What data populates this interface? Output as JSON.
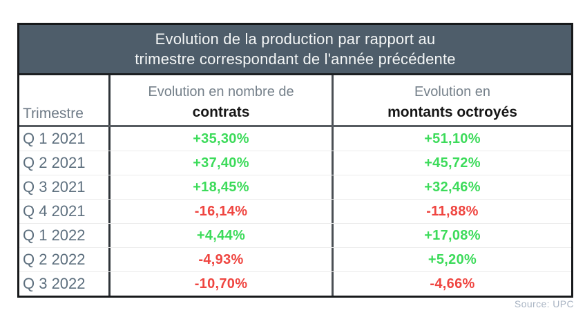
{
  "table": {
    "title_line1": "Evolution de la production par rapport au",
    "title_line2": "trimestre correspondant de l'année précédente",
    "header": {
      "trimestre": "Trimestre",
      "contrats_line1": "Evolution en nombre de",
      "contrats_line2": "contrats",
      "montants_line1": "Evolution en",
      "montants_line2": "montants octroyés"
    },
    "rows": [
      {
        "trimestre": "Q 1 2021",
        "contrats": "+35,30%",
        "montants": "+51,10%"
      },
      {
        "trimestre": "Q 2 2021",
        "contrats": "+37,40%",
        "montants": "+45,72%"
      },
      {
        "trimestre": "Q 3 2021",
        "contrats": "+18,45%",
        "montants": "+32,46%"
      },
      {
        "trimestre": "Q 4 2021",
        "contrats": "-16,14%",
        "montants": "-11,88%"
      },
      {
        "trimestre": "Q 1 2022",
        "contrats": "+4,44%",
        "montants": "+17,08%"
      },
      {
        "trimestre": "Q 2 2022",
        "contrats": "-4,93%",
        "montants": "+5,20%"
      },
      {
        "trimestre": "Q 3 2022",
        "contrats": "-10,70%",
        "montants": "-4,66%"
      }
    ]
  },
  "chart_data": {
    "type": "table",
    "title": "Evolution de la production par rapport au trimestre correspondant de l'année précédente",
    "columns": [
      "Trimestre",
      "Evolution en nombre de contrats",
      "Evolution en montants octroyés"
    ],
    "rows": [
      [
        "Q 1 2021",
        "+35,30%",
        "+51,10%"
      ],
      [
        "Q 2 2021",
        "+37,40%",
        "+45,72%"
      ],
      [
        "Q 3 2021",
        "+18,45%",
        "+32,46%"
      ],
      [
        "Q 4 2021",
        "-16,14%",
        "-11,88%"
      ],
      [
        "Q 1 2022",
        "+4,44%",
        "+17,08%"
      ],
      [
        "Q 2 2022",
        "-4,93%",
        "+5,20%"
      ],
      [
        "Q 3 2022",
        "-10,70%",
        "-4,66%"
      ]
    ],
    "series": [
      {
        "name": "Evolution en nombre de contrats",
        "values": [
          35.3,
          37.4,
          18.45,
          -16.14,
          4.44,
          -4.93,
          -10.7
        ]
      },
      {
        "name": "Evolution en montants octroyés",
        "values": [
          51.1,
          45.72,
          32.46,
          -11.88,
          17.08,
          5.2,
          -4.66
        ]
      }
    ],
    "categories": [
      "Q 1 2021",
      "Q 2 2021",
      "Q 3 2021",
      "Q 4 2021",
      "Q 1 2022",
      "Q 2 2022",
      "Q 3 2022"
    ],
    "unit": "%"
  },
  "colors": {
    "header_bg": "#4e5d6a",
    "header_text": "#f4f6f6",
    "positive": "#3cdb5a",
    "negative": "#ef4540",
    "quarter_text": "#5d6f7e",
    "source_text": "#a9b4c3"
  },
  "footer": {
    "source": "Source: UPC"
  }
}
